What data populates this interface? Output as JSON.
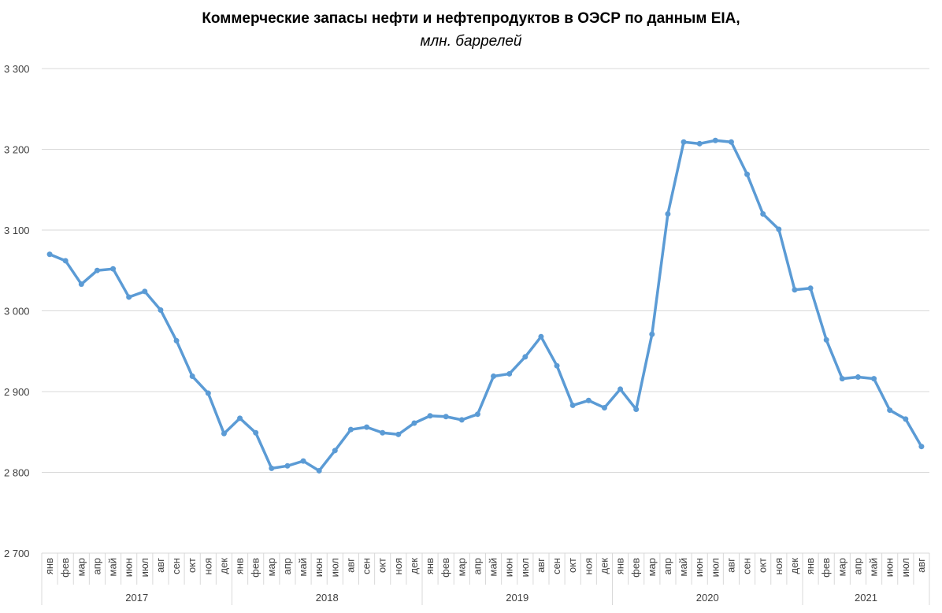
{
  "chart_data": {
    "type": "line",
    "title": "Коммерческие запасы нефти и нефтепродуктов в ОЭСР по данным EIA,",
    "subtitle": "млн. баррелей",
    "xlabel": "",
    "ylabel": "",
    "ylim": [
      2700,
      3300
    ],
    "yticks": [
      2700,
      2800,
      2900,
      3000,
      3100,
      3200,
      3300
    ],
    "ytick_labels": [
      "2 700",
      "2 800",
      "2 900",
      "3 000",
      "3 100",
      "3 200",
      "3 300"
    ],
    "grid": true,
    "color": "#5B9BD5",
    "years": [
      {
        "label": "2017",
        "months": [
          "янв",
          "фев",
          "мар",
          "апр",
          "май",
          "июн",
          "июл",
          "авг",
          "сен",
          "окт",
          "ноя",
          "дек"
        ]
      },
      {
        "label": "2018",
        "months": [
          "янв",
          "фев",
          "мар",
          "апр",
          "май",
          "июн",
          "июл",
          "авг",
          "сен",
          "окт",
          "ноя",
          "дек"
        ]
      },
      {
        "label": "2019",
        "months": [
          "янв",
          "фев",
          "мар",
          "апр",
          "май",
          "июн",
          "июл",
          "авг",
          "сен",
          "окт",
          "ноя",
          "дек"
        ]
      },
      {
        "label": "2020",
        "months": [
          "янв",
          "фев",
          "мар",
          "апр",
          "май",
          "июн",
          "июл",
          "авг",
          "сен",
          "окт",
          "ноя",
          "дек"
        ]
      },
      {
        "label": "2021",
        "months": [
          "янв",
          "фев",
          "мар",
          "апр",
          "май",
          "июн",
          "июл",
          "авг"
        ]
      }
    ],
    "series": [
      {
        "name": "Коммерческие запасы",
        "values": [
          3070,
          3062,
          3033,
          3050,
          3052,
          3017,
          3024,
          3001,
          2963,
          2919,
          2898,
          2848,
          2867,
          2849,
          2805,
          2808,
          2814,
          2802,
          2827,
          2853,
          2856,
          2849,
          2847,
          2861,
          2870,
          2869,
          2865,
          2872,
          2919,
          2922,
          2943,
          2968,
          2932,
          2883,
          2889,
          2880,
          2903,
          2878,
          2971,
          3120,
          3209,
          3207,
          3211,
          3209,
          3169,
          3120,
          3101,
          3026,
          3028,
          2964,
          2916,
          2918,
          2916,
          2877,
          2866,
          2832
        ]
      }
    ]
  }
}
